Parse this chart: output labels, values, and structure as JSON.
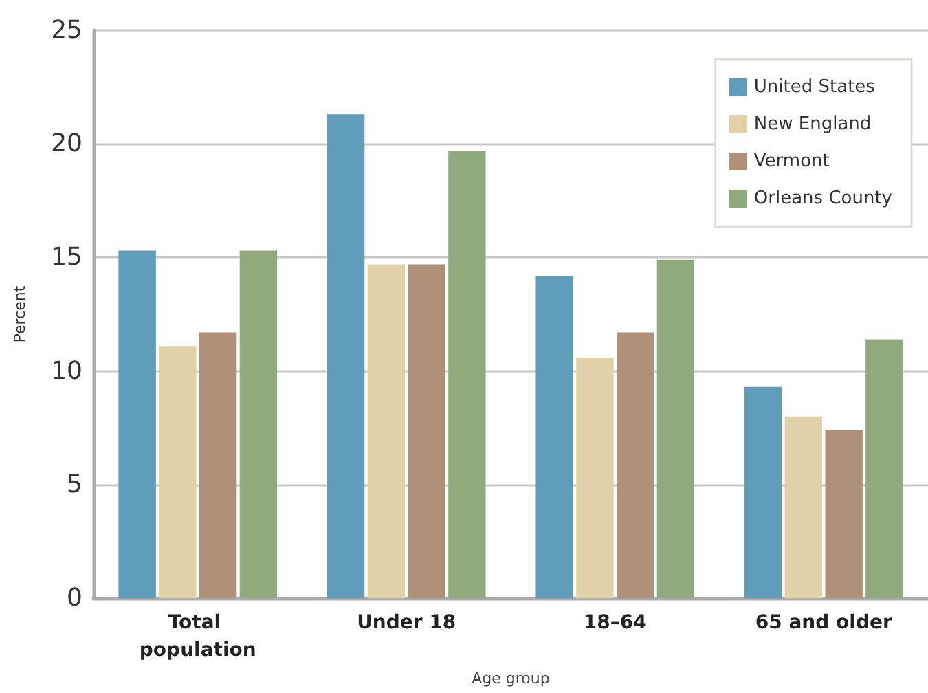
{
  "chart_data": {
    "type": "bar",
    "xlabel": "Age group",
    "ylabel": "Percent",
    "categories": [
      "Total population",
      "Under 18",
      "18–64",
      "65 and older"
    ],
    "series": [
      {
        "name": "United States",
        "color": "#5f9dba",
        "values": [
          15.3,
          21.3,
          14.2,
          9.3
        ]
      },
      {
        "name": "New England",
        "color": "#e0d1a8",
        "values": [
          11.1,
          14.7,
          10.6,
          8.0
        ]
      },
      {
        "name": "Vermont",
        "color": "#af9078",
        "values": [
          11.7,
          14.7,
          11.7,
          7.4
        ]
      },
      {
        "name": "Orleans County",
        "color": "#90aa7e",
        "values": [
          15.3,
          19.7,
          14.9,
          11.4
        ]
      }
    ],
    "ylim": [
      0,
      25
    ],
    "yticks": [
      0,
      5,
      10,
      15,
      20,
      25
    ],
    "grid": "y",
    "legend": "top right"
  }
}
